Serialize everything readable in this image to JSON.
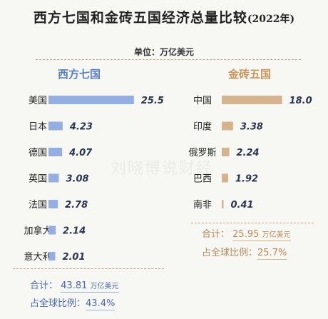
{
  "title": "西方七国和金砖五国经济总量比较",
  "title_year": "(2022年)",
  "unit": "单位：万亿美元",
  "watermark": "刘晓博说财经",
  "colors": {
    "west": "#94aee2",
    "brics": "#d6b38f"
  },
  "chart_data": [
    {
      "type": "bar",
      "orientation": "horizontal",
      "group": "西方七国",
      "categories": [
        "美国",
        "日本",
        "德国",
        "英国",
        "法国",
        "加拿大",
        "意大利"
      ],
      "values": [
        25.5,
        4.23,
        4.07,
        3.08,
        2.78,
        2.14,
        2.01
      ],
      "labels": [
        "25.5",
        "4.23",
        "4.07",
        "3.08",
        "2.78",
        "2.14",
        "2.01"
      ],
      "total_label": "合计：",
      "total": "43.81",
      "total_unit": "万亿美元",
      "share_label": "占全球比例：",
      "share": "43.4%"
    },
    {
      "type": "bar",
      "orientation": "horizontal",
      "group": "金砖五国",
      "categories": [
        "中国",
        "印度",
        "俄罗斯",
        "巴西",
        "南非"
      ],
      "values": [
        18.0,
        3.38,
        2.24,
        1.92,
        0.41
      ],
      "labels": [
        "18.0",
        "3.38",
        "2.24",
        "1.92",
        "0.41"
      ],
      "total_label": "合计：",
      "total": "25.95",
      "total_unit": "万亿美元",
      "share_label": "占全球比例：",
      "share": "25.7%"
    }
  ]
}
